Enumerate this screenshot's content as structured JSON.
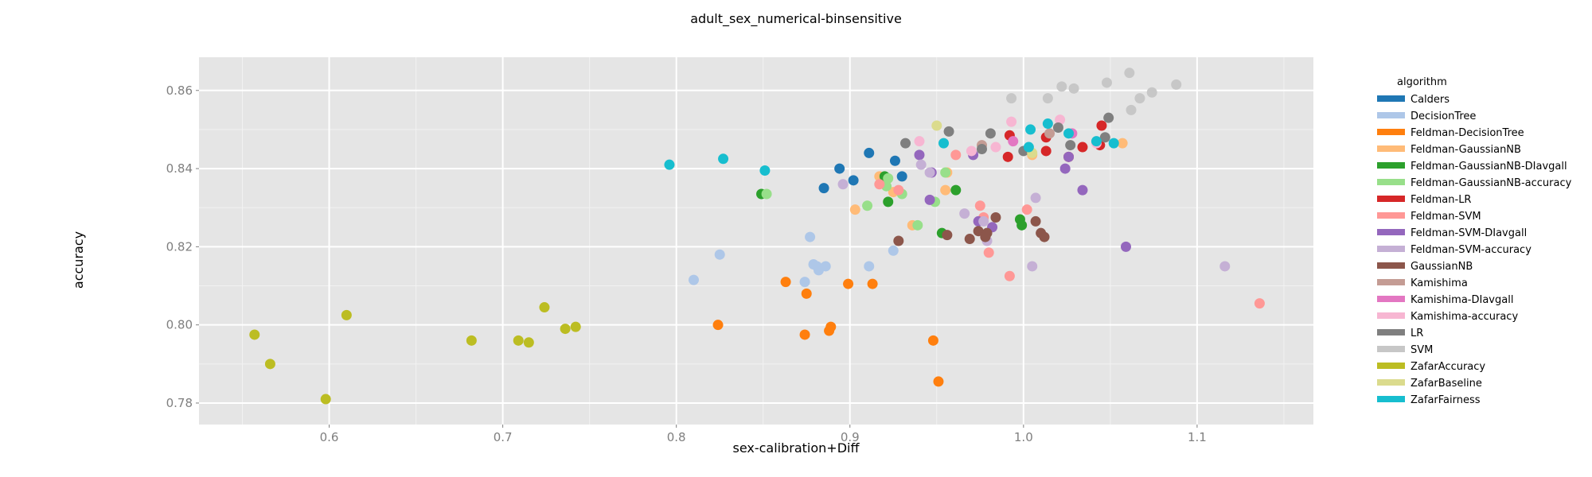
{
  "chart_data": {
    "type": "scatter",
    "title": "adult_sex_numerical-binsensitive",
    "xlabel": "sex-calibration+Diff",
    "ylabel": "accuracy",
    "xlim": [
      0.525,
      1.167
    ],
    "ylim": [
      0.7745,
      0.8685
    ],
    "xticks": [
      0.6,
      0.7,
      0.8,
      0.9,
      1.0,
      1.1
    ],
    "xtick_labels": [
      "0.6",
      "0.7",
      "0.8",
      "0.9",
      "1.0",
      "1.1"
    ],
    "yticks": [
      0.78,
      0.8,
      0.82,
      0.84,
      0.86
    ],
    "ytick_labels": [
      "0.78",
      "0.80",
      "0.82",
      "0.84",
      "0.86"
    ],
    "grid": true,
    "legend_title": "algorithm",
    "legend_position": "right",
    "series": [
      {
        "name": "Calders",
        "color": "#1f77b4",
        "points": [
          [
            0.885,
            0.835
          ],
          [
            0.894,
            0.84
          ],
          [
            0.902,
            0.837
          ],
          [
            0.911,
            0.844
          ],
          [
            0.926,
            0.842
          ],
          [
            0.93,
            0.838
          ]
        ]
      },
      {
        "name": "DecisionTree",
        "color": "#aec7e8",
        "points": [
          [
            0.81,
            0.8115
          ],
          [
            0.825,
            0.818
          ],
          [
            0.874,
            0.811
          ],
          [
            0.877,
            0.8225
          ],
          [
            0.879,
            0.8155
          ],
          [
            0.881,
            0.815
          ],
          [
            0.882,
            0.814
          ],
          [
            0.886,
            0.815
          ],
          [
            0.911,
            0.815
          ],
          [
            0.925,
            0.819
          ]
        ]
      },
      {
        "name": "Feldman-DecisionTree",
        "color": "#ff7f0e",
        "points": [
          [
            0.824,
            0.8
          ],
          [
            0.863,
            0.811
          ],
          [
            0.874,
            0.7975
          ],
          [
            0.875,
            0.808
          ],
          [
            0.888,
            0.7985
          ],
          [
            0.889,
            0.7995
          ],
          [
            0.899,
            0.8105
          ],
          [
            0.913,
            0.8105
          ],
          [
            0.948,
            0.796
          ],
          [
            0.951,
            0.7855
          ]
        ]
      },
      {
        "name": "Feldman-GaussianNB",
        "color": "#ffbb78",
        "points": [
          [
            0.903,
            0.8295
          ],
          [
            0.917,
            0.838
          ],
          [
            0.925,
            0.834
          ],
          [
            0.936,
            0.8255
          ],
          [
            0.955,
            0.8345
          ],
          [
            0.956,
            0.839
          ],
          [
            1.005,
            0.8435
          ],
          [
            1.057,
            0.8465
          ]
        ]
      },
      {
        "name": "Feldman-GaussianNB-DIavgall",
        "color": "#2ca02c",
        "points": [
          [
            0.849,
            0.8335
          ],
          [
            0.92,
            0.838
          ],
          [
            0.922,
            0.8315
          ],
          [
            0.953,
            0.8235
          ],
          [
            0.961,
            0.8345
          ],
          [
            0.998,
            0.827
          ],
          [
            0.999,
            0.8255
          ]
        ]
      },
      {
        "name": "Feldman-GaussianNB-accuracy",
        "color": "#98df8a",
        "points": [
          [
            0.852,
            0.8335
          ],
          [
            0.91,
            0.8305
          ],
          [
            0.921,
            0.8355
          ],
          [
            0.922,
            0.8375
          ],
          [
            0.93,
            0.8335
          ],
          [
            0.939,
            0.8255
          ],
          [
            0.949,
            0.8315
          ],
          [
            0.955,
            0.839
          ]
        ]
      },
      {
        "name": "Feldman-LR",
        "color": "#d62728",
        "points": [
          [
            0.991,
            0.843
          ],
          [
            0.992,
            0.8485
          ],
          [
            1.013,
            0.8445
          ],
          [
            1.013,
            0.848
          ],
          [
            1.026,
            0.843
          ],
          [
            1.034,
            0.8455
          ],
          [
            1.045,
            0.851
          ],
          [
            1.044,
            0.846
          ]
        ]
      },
      {
        "name": "Feldman-SVM",
        "color": "#ff9896",
        "points": [
          [
            0.917,
            0.836
          ],
          [
            0.928,
            0.8345
          ],
          [
            0.961,
            0.8435
          ],
          [
            0.975,
            0.8305
          ],
          [
            0.977,
            0.8275
          ],
          [
            0.98,
            0.8185
          ],
          [
            0.992,
            0.8125
          ],
          [
            1.002,
            0.8295
          ],
          [
            1.136,
            0.8055
          ]
        ]
      },
      {
        "name": "Feldman-SVM-DIavgall",
        "color": "#9467bd",
        "points": [
          [
            0.94,
            0.8435
          ],
          [
            0.946,
            0.832
          ],
          [
            0.947,
            0.839
          ],
          [
            0.971,
            0.8435
          ],
          [
            0.974,
            0.8265
          ],
          [
            0.982,
            0.825
          ],
          [
            1.024,
            0.84
          ],
          [
            1.026,
            0.843
          ],
          [
            1.034,
            0.8345
          ],
          [
            1.059,
            0.82
          ]
        ]
      },
      {
        "name": "Feldman-SVM-accuracy",
        "color": "#c5b0d5",
        "points": [
          [
            0.896,
            0.836
          ],
          [
            0.941,
            0.841
          ],
          [
            0.946,
            0.839
          ],
          [
            0.966,
            0.8285
          ],
          [
            0.977,
            0.8265
          ],
          [
            0.979,
            0.8215
          ],
          [
            1.005,
            0.815
          ],
          [
            1.007,
            0.8325
          ],
          [
            1.116,
            0.815
          ]
        ]
      },
      {
        "name": "GaussianNB",
        "color": "#8c564b",
        "points": [
          [
            0.928,
            0.8215
          ],
          [
            0.956,
            0.823
          ],
          [
            0.969,
            0.822
          ],
          [
            0.974,
            0.824
          ],
          [
            0.979,
            0.8235
          ],
          [
            0.978,
            0.8225
          ],
          [
            0.984,
            0.8275
          ],
          [
            1.007,
            0.8265
          ],
          [
            1.01,
            0.8235
          ],
          [
            1.012,
            0.8225
          ]
        ]
      },
      {
        "name": "Kamishima",
        "color": "#c49c94",
        "points": [
          [
            0.976,
            0.846
          ],
          [
            1.015,
            0.849
          ]
        ]
      },
      {
        "name": "Kamishima-DIavgall",
        "color": "#e377c2",
        "points": [
          [
            0.994,
            0.847
          ],
          [
            1.028,
            0.849
          ]
        ]
      },
      {
        "name": "Kamishima-accuracy",
        "color": "#f7b6d2",
        "points": [
          [
            0.94,
            0.847
          ],
          [
            0.97,
            0.8445
          ],
          [
            0.984,
            0.8455
          ],
          [
            0.993,
            0.852
          ],
          [
            1.021,
            0.8525
          ],
          [
            1.042,
            0.8465
          ]
        ]
      },
      {
        "name": "LR",
        "color": "#7f7f7f",
        "points": [
          [
            0.932,
            0.8465
          ],
          [
            0.957,
            0.8495
          ],
          [
            0.976,
            0.845
          ],
          [
            0.981,
            0.849
          ],
          [
            1.0,
            0.8445
          ],
          [
            1.02,
            0.8505
          ],
          [
            1.027,
            0.846
          ],
          [
            1.047,
            0.848
          ],
          [
            1.049,
            0.853
          ]
        ]
      },
      {
        "name": "SVM",
        "color": "#c7c7c7",
        "points": [
          [
            0.993,
            0.858
          ],
          [
            1.014,
            0.858
          ],
          [
            1.022,
            0.861
          ],
          [
            1.029,
            0.8605
          ],
          [
            1.048,
            0.862
          ],
          [
            1.061,
            0.8645
          ],
          [
            1.062,
            0.855
          ],
          [
            1.067,
            0.858
          ],
          [
            1.074,
            0.8595
          ],
          [
            1.088,
            0.8615
          ]
        ]
      },
      {
        "name": "ZafarAccuracy",
        "color": "#bcbd22",
        "points": [
          [
            0.557,
            0.7975
          ],
          [
            0.566,
            0.79
          ],
          [
            0.598,
            0.781
          ],
          [
            0.61,
            0.8025
          ],
          [
            0.682,
            0.796
          ],
          [
            0.709,
            0.796
          ],
          [
            0.715,
            0.7955
          ],
          [
            0.724,
            0.8045
          ],
          [
            0.736,
            0.799
          ],
          [
            0.742,
            0.7995
          ]
        ]
      },
      {
        "name": "ZafarBaseline",
        "color": "#dbdb8d",
        "points": [
          [
            0.95,
            0.851
          ],
          [
            1.005,
            0.844
          ]
        ]
      },
      {
        "name": "ZafarFairness",
        "color": "#17becf",
        "points": [
          [
            0.796,
            0.841
          ],
          [
            0.827,
            0.8425
          ],
          [
            0.851,
            0.8395
          ],
          [
            0.954,
            0.8465
          ],
          [
            1.003,
            0.8455
          ],
          [
            1.004,
            0.85
          ],
          [
            1.014,
            0.8515
          ],
          [
            1.026,
            0.849
          ],
          [
            1.042,
            0.847
          ],
          [
            1.052,
            0.8465
          ]
        ]
      }
    ]
  }
}
